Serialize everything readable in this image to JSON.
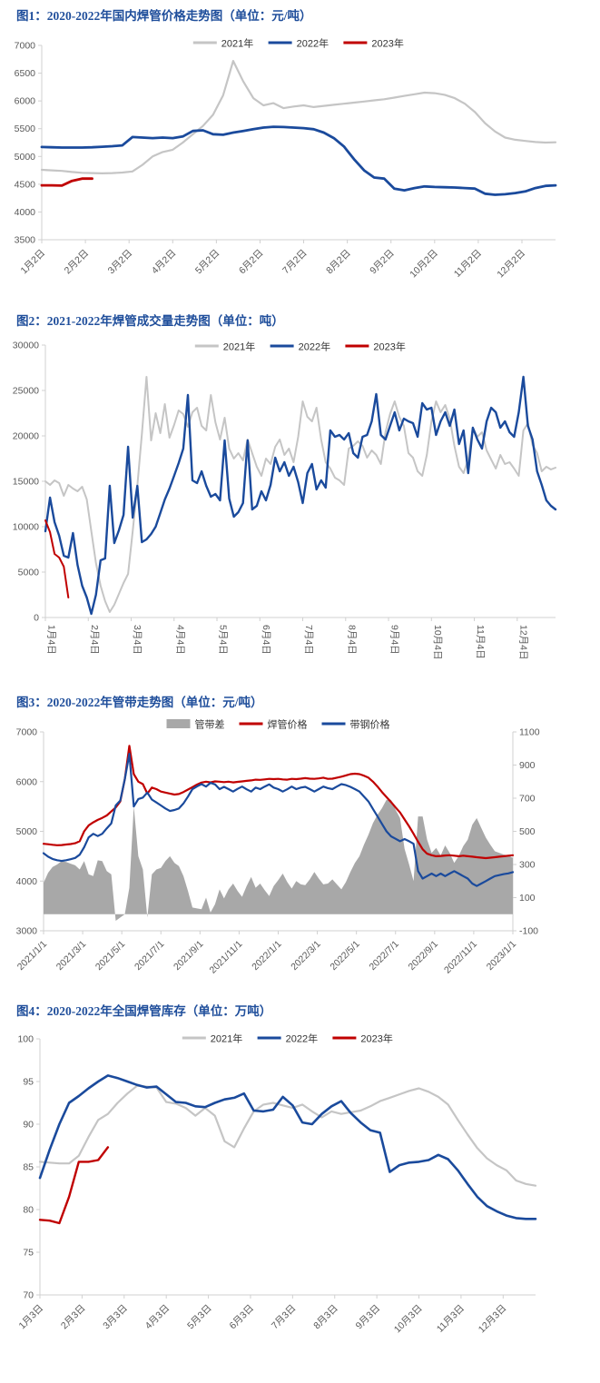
{
  "colors": {
    "title_blue": "#1f4e9b",
    "axis_line": "#d0d0d0",
    "axis_text": "#595959",
    "series_2021_gray": "#c5c5c5",
    "series_2022_blue": "#1a4a9c",
    "series_2023_red": "#c00000",
    "spread_area_gray": "#a8a8a8"
  },
  "chart_data": [
    {
      "id": "fig1",
      "type": "line",
      "title": "图1：2020-2022年国内焊管价格走势图（单位：元/吨）",
      "unit": "元/吨",
      "legend_position": "top-center",
      "x_label_style": "rotated-45",
      "x_ticks": [
        "1月2日",
        "2月2日",
        "3月2日",
        "4月2日",
        "5月2日",
        "6月2日",
        "7月2日",
        "8月2日",
        "9月2日",
        "10月2日",
        "11月2日",
        "12月2日"
      ],
      "ylim": [
        3500,
        7000
      ],
      "y_ticks": [
        3500,
        4000,
        4500,
        5000,
        5500,
        6000,
        6500,
        7000
      ],
      "n_points": 52,
      "series": [
        {
          "key": "y2021",
          "name": "2021年",
          "color": "#c5c5c5",
          "width": 2.2,
          "values": [
            4760,
            4750,
            4740,
            4720,
            4705,
            4700,
            4695,
            4700,
            4710,
            4730,
            4850,
            5000,
            5080,
            5120,
            5250,
            5400,
            5550,
            5750,
            6100,
            6720,
            6350,
            6050,
            5920,
            5960,
            5870,
            5900,
            5920,
            5890,
            5910,
            5930,
            5950,
            5970,
            5990,
            6010,
            6030,
            6060,
            6090,
            6120,
            6150,
            6140,
            6110,
            6050,
            5950,
            5800,
            5600,
            5450,
            5340,
            5300,
            5280,
            5260,
            5250,
            5255
          ]
        },
        {
          "key": "y2022",
          "name": "2022年",
          "color": "#1a4a9c",
          "width": 2.8,
          "values": [
            5170,
            5165,
            5160,
            5160,
            5160,
            5165,
            5175,
            5185,
            5200,
            5350,
            5340,
            5330,
            5340,
            5330,
            5360,
            5460,
            5470,
            5400,
            5390,
            5430,
            5460,
            5490,
            5520,
            5535,
            5530,
            5520,
            5510,
            5490,
            5430,
            5330,
            5180,
            4950,
            4750,
            4620,
            4600,
            4420,
            4390,
            4430,
            4460,
            4450,
            4445,
            4440,
            4430,
            4420,
            4330,
            4310,
            4320,
            4340,
            4370,
            4430,
            4470,
            4480
          ]
        },
        {
          "key": "y2023",
          "name": "2023年",
          "color": "#c00000",
          "width": 2.8,
          "values": [
            4480,
            4480,
            4475,
            4560,
            4600,
            4600
          ]
        }
      ]
    },
    {
      "id": "fig2",
      "type": "line",
      "title": "图2：2021-2022年焊管成交量走势图（单位：吨）",
      "unit": "吨",
      "legend_position": "top-center",
      "x_label_style": "vertical",
      "x_ticks": [
        "1月4日",
        "2月4日",
        "3月4日",
        "4月4日",
        "5月4日",
        "6月4日",
        "7月4日",
        "8月4日",
        "9月4日",
        "10月4日",
        "11月4日",
        "12月4日"
      ],
      "ylim": [
        0,
        30000
      ],
      "y_ticks": [
        0,
        5000,
        10000,
        15000,
        20000,
        25000,
        30000
      ],
      "n_points": 112,
      "series": [
        {
          "key": "y2021",
          "name": "2021年",
          "color": "#c5c5c5",
          "width": 2,
          "values": [
            15000,
            14600,
            15100,
            14800,
            13400,
            14600,
            14200,
            13900,
            14400,
            13000,
            9500,
            6000,
            3500,
            1800,
            600,
            1400,
            2600,
            3800,
            4800,
            9500,
            14500,
            20200,
            26500,
            19500,
            22500,
            20300,
            23500,
            19800,
            21200,
            22800,
            22400,
            21000,
            22600,
            23100,
            21100,
            20600,
            24500,
            21500,
            19600,
            22000,
            18600,
            17500,
            18100,
            17300,
            19600,
            18100,
            16600,
            15600,
            17500,
            16900,
            18800,
            19600,
            17900,
            18600,
            17100,
            19900,
            23800,
            22100,
            21600,
            23100,
            19600,
            17100,
            16400,
            15400,
            15100,
            14600,
            18600,
            18900,
            19400,
            18900,
            17600,
            18400,
            17900,
            16900,
            20400,
            22400,
            23800,
            22100,
            21100,
            18100,
            17600,
            16100,
            15600,
            17900,
            21600,
            23800,
            22600,
            23400,
            21900,
            18900,
            16600,
            15900,
            17400,
            20900,
            19900,
            20400,
            18400,
            17400,
            16400,
            17900,
            16900,
            17100,
            16400,
            15600,
            20600,
            21400,
            19000,
            18100,
            16100,
            16600,
            16300,
            16500
          ]
        },
        {
          "key": "y2022",
          "name": "2022年",
          "color": "#1a4a9c",
          "width": 2.4,
          "values": [
            9500,
            13200,
            10500,
            9000,
            6800,
            6600,
            9300,
            5800,
            3500,
            2200,
            400,
            2500,
            6300,
            6500,
            14500,
            8200,
            9600,
            11300,
            18800,
            11000,
            14500,
            8300,
            8600,
            9200,
            10000,
            11500,
            13000,
            14200,
            15600,
            17000,
            18600,
            24500,
            15100,
            14800,
            16100,
            14500,
            13300,
            13600,
            12900,
            19500,
            13100,
            11100,
            11600,
            12600,
            19500,
            11900,
            12300,
            13900,
            12900,
            14600,
            17600,
            16100,
            17100,
            15600,
            16600,
            14900,
            12600,
            15900,
            16900,
            14100,
            15100,
            14300,
            20600,
            19900,
            20100,
            19600,
            20300,
            18100,
            17600,
            19900,
            20100,
            21600,
            24600,
            20100,
            19600,
            21100,
            22600,
            20600,
            21900,
            21600,
            21400,
            19900,
            23600,
            22900,
            23100,
            20100,
            21600,
            22600,
            21100,
            22900,
            19100,
            20600,
            15900,
            20900,
            19600,
            18600,
            21600,
            23100,
            22600,
            20900,
            21600,
            20400,
            19900,
            22600,
            26500,
            21100,
            19600,
            16100,
            14600,
            12900,
            12300,
            11900
          ]
        },
        {
          "key": "y2023",
          "name": "2023年",
          "color": "#c00000",
          "width": 2,
          "values": [
            10700,
            9400,
            7000,
            6600,
            5600,
            2200
          ]
        }
      ]
    },
    {
      "id": "fig3",
      "type": "line-area-dual-axis",
      "title": "图3：2020-2022年管带走势图（单位：元/吨）",
      "unit": "元/吨",
      "legend_position": "top-center",
      "x_label_style": "rotated-45",
      "x_ticks": [
        "2021/1/1",
        "2021/3/1",
        "2021/5/1",
        "2021/7/1",
        "2021/9/1",
        "2021/11/1",
        "2022/1/1",
        "2022/3/1",
        "2022/5/1",
        "2022/7/1",
        "2022/9/1",
        "2022/11/1",
        "2023/1/1"
      ],
      "ylim": [
        3000,
        7000
      ],
      "y_ticks": [
        3000,
        4000,
        5000,
        6000,
        7000
      ],
      "ylim2": [
        -100,
        1100
      ],
      "y2_ticks": [
        -100,
        100,
        300,
        500,
        700,
        900,
        1100
      ],
      "n_points": 105,
      "series": [
        {
          "key": "spread",
          "name": "管带差",
          "type": "area",
          "axis": "y2",
          "color": "#a8a8a8",
          "values": [
            190,
            250,
            285,
            300,
            320,
            315,
            305,
            295,
            270,
            320,
            240,
            230,
            325,
            320,
            260,
            240,
            -40,
            -20,
            0,
            160,
            650,
            350,
            270,
            -20,
            240,
            270,
            280,
            320,
            350,
            310,
            290,
            230,
            140,
            40,
            35,
            30,
            100,
            10,
            60,
            150,
            95,
            150,
            185,
            140,
            105,
            170,
            225,
            160,
            185,
            145,
            110,
            170,
            205,
            245,
            195,
            155,
            200,
            180,
            175,
            210,
            255,
            215,
            180,
            185,
            210,
            180,
            150,
            195,
            255,
            310,
            350,
            420,
            480,
            550,
            600,
            640,
            690,
            690,
            630,
            580,
            395,
            300,
            200,
            590,
            590,
            450,
            370,
            400,
            355,
            415,
            370,
            310,
            350,
            410,
            450,
            540,
            580,
            520,
            462,
            420,
            380,
            370,
            360,
            355,
            340
          ]
        },
        {
          "key": "pipe_price",
          "name": "焊管价格",
          "color": "#c00000",
          "width": 2.2,
          "values": [
            4750,
            4740,
            4730,
            4720,
            4725,
            4735,
            4745,
            4760,
            4800,
            5000,
            5120,
            5180,
            5230,
            5270,
            5320,
            5400,
            5480,
            5600,
            6050,
            6720,
            6150,
            6000,
            5950,
            5760,
            5880,
            5850,
            5800,
            5780,
            5760,
            5740,
            5750,
            5790,
            5840,
            5890,
            5940,
            5980,
            6000,
            5985,
            6005,
            6000,
            5990,
            6000,
            5985,
            5995,
            6005,
            6015,
            6025,
            6040,
            6035,
            6045,
            6055,
            6050,
            6055,
            6045,
            6040,
            6055,
            6050,
            6060,
            6070,
            6060,
            6055,
            6065,
            6080,
            6055,
            6060,
            6080,
            6100,
            6125,
            6150,
            6160,
            6150,
            6120,
            6080,
            6000,
            5900,
            5790,
            5690,
            5590,
            5480,
            5380,
            5240,
            5100,
            4950,
            4790,
            4640,
            4550,
            4520,
            4500,
            4505,
            4515,
            4520,
            4510,
            4500,
            4510,
            4500,
            4490,
            4480,
            4470,
            4462,
            4470,
            4480,
            4490,
            4500,
            4510,
            4520
          ]
        },
        {
          "key": "strip_price",
          "name": "带钢价格",
          "color": "#1a4a9c",
          "width": 2.2,
          "values": [
            4560,
            4490,
            4445,
            4420,
            4405,
            4420,
            4440,
            4465,
            4530,
            4680,
            4880,
            4950,
            4905,
            4950,
            5060,
            5160,
            5520,
            5620,
            6050,
            6560,
            5500,
            5650,
            5680,
            5780,
            5640,
            5580,
            5520,
            5460,
            5410,
            5430,
            5460,
            5560,
            5700,
            5850,
            5905,
            5950,
            5900,
            5975,
            5945,
            5850,
            5895,
            5850,
            5800,
            5855,
            5900,
            5845,
            5800,
            5880,
            5850,
            5900,
            5945,
            5880,
            5850,
            5800,
            5845,
            5900,
            5850,
            5880,
            5895,
            5850,
            5800,
            5850,
            5900,
            5870,
            5850,
            5900,
            5950,
            5930,
            5895,
            5850,
            5800,
            5700,
            5600,
            5450,
            5300,
            5150,
            5000,
            4900,
            4850,
            4800,
            4845,
            4800,
            4750,
            4200,
            4050,
            4100,
            4150,
            4100,
            4150,
            4100,
            4150,
            4200,
            4150,
            4100,
            4050,
            3950,
            3900,
            3950,
            4000,
            4050,
            4100,
            4120,
            4140,
            4155,
            4180
          ]
        }
      ]
    },
    {
      "id": "fig4",
      "type": "line",
      "title": "图4：2020-2022年全国焊管库存（单位：万吨）",
      "unit": "万吨",
      "legend_position": "top-center",
      "x_label_style": "rotated-45",
      "x_ticks": [
        "1月3日",
        "2月3日",
        "3月3日",
        "4月3日",
        "5月3日",
        "6月3日",
        "7月3日",
        "8月3日",
        "9月3日",
        "10月3日",
        "11月3日",
        "12月3日"
      ],
      "ylim": [
        70,
        100
      ],
      "y_ticks": [
        70,
        75,
        80,
        85,
        90,
        95,
        100
      ],
      "n_points": 52,
      "series": [
        {
          "key": "y2021",
          "name": "2021年",
          "color": "#c5c5c5",
          "width": 2.2,
          "values": [
            85.6,
            85.5,
            85.4,
            85.4,
            86.3,
            88.5,
            90.5,
            91.2,
            92.5,
            93.6,
            94.5,
            94.4,
            94.3,
            92.6,
            92.4,
            91.9,
            91.0,
            91.9,
            91.0,
            88.0,
            87.3,
            89.5,
            91.5,
            92.3,
            92.5,
            92.2,
            91.9,
            92.3,
            91.5,
            90.8,
            91.5,
            91.2,
            91.4,
            91.6,
            92.1,
            92.7,
            93.1,
            93.5,
            93.9,
            94.2,
            93.8,
            93.2,
            92.3,
            90.5,
            88.8,
            87.2,
            86.0,
            85.2,
            84.6,
            83.4,
            83.0,
            82.8
          ]
        },
        {
          "key": "y2022",
          "name": "2022年",
          "color": "#1a4a9c",
          "width": 2.6,
          "values": [
            83.7,
            87.0,
            90.0,
            92.5,
            93.3,
            94.2,
            95.0,
            95.7,
            95.4,
            95.0,
            94.6,
            94.3,
            94.4,
            93.5,
            92.6,
            92.5,
            92.1,
            92.0,
            92.5,
            92.9,
            93.1,
            93.6,
            91.6,
            91.5,
            91.7,
            93.2,
            92.2,
            90.2,
            90.0,
            91.2,
            92.1,
            92.7,
            91.3,
            90.2,
            89.3,
            89.0,
            84.4,
            85.2,
            85.5,
            85.6,
            85.8,
            86.4,
            85.9,
            84.6,
            83.0,
            81.5,
            80.4,
            79.8,
            79.3,
            79.0,
            78.9,
            78.9
          ]
        },
        {
          "key": "y2023",
          "name": "2023年",
          "color": "#c00000",
          "width": 2.4,
          "values": [
            78.8,
            78.7,
            78.4,
            81.5,
            85.6,
            85.6,
            85.8,
            87.3
          ]
        }
      ]
    }
  ]
}
